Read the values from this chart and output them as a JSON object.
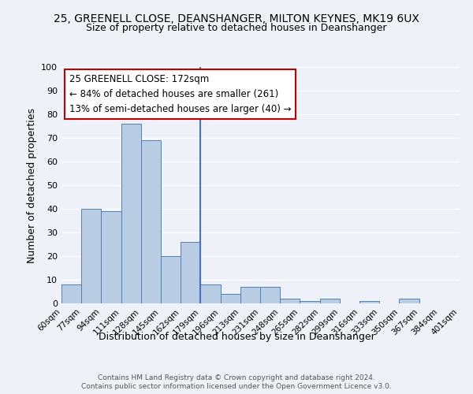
{
  "title1": "25, GREENELL CLOSE, DEANSHANGER, MILTON KEYNES, MK19 6UX",
  "title2": "Size of property relative to detached houses in Deanshanger",
  "xlabel": "Distribution of detached houses by size in Deanshanger",
  "ylabel": "Number of detached properties",
  "bin_edges": [
    "60sqm",
    "77sqm",
    "94sqm",
    "111sqm",
    "128sqm",
    "145sqm",
    "162sqm",
    "179sqm",
    "196sqm",
    "213sqm",
    "231sqm",
    "248sqm",
    "265sqm",
    "282sqm",
    "299sqm",
    "316sqm",
    "333sqm",
    "350sqm",
    "367sqm",
    "384sqm",
    "401sqm"
  ],
  "bar_values": [
    8,
    40,
    39,
    76,
    69,
    20,
    26,
    8,
    4,
    7,
    7,
    2,
    1,
    2,
    0,
    1,
    0,
    2,
    0,
    0
  ],
  "bar_color": "#b8cce4",
  "bar_edge_color": "#5080b8",
  "ylim": [
    0,
    100
  ],
  "yticks": [
    0,
    10,
    20,
    30,
    40,
    50,
    60,
    70,
    80,
    90,
    100
  ],
  "vline_color": "#4472c4",
  "annotation_title": "25 GREENELL CLOSE: 172sqm",
  "annotation_line1": "← 84% of detached houses are smaller (261)",
  "annotation_line2": "13% of semi-detached houses are larger (40) →",
  "annotation_box_color": "#ffffff",
  "annotation_box_edge": "#c00000",
  "footer1": "Contains HM Land Registry data © Crown copyright and database right 2024.",
  "footer2": "Contains public sector information licensed under the Open Government Licence v3.0.",
  "bg_color": "#eef2f8",
  "plot_bg_color": "#eef2f8",
  "grid_color": "#ffffff"
}
